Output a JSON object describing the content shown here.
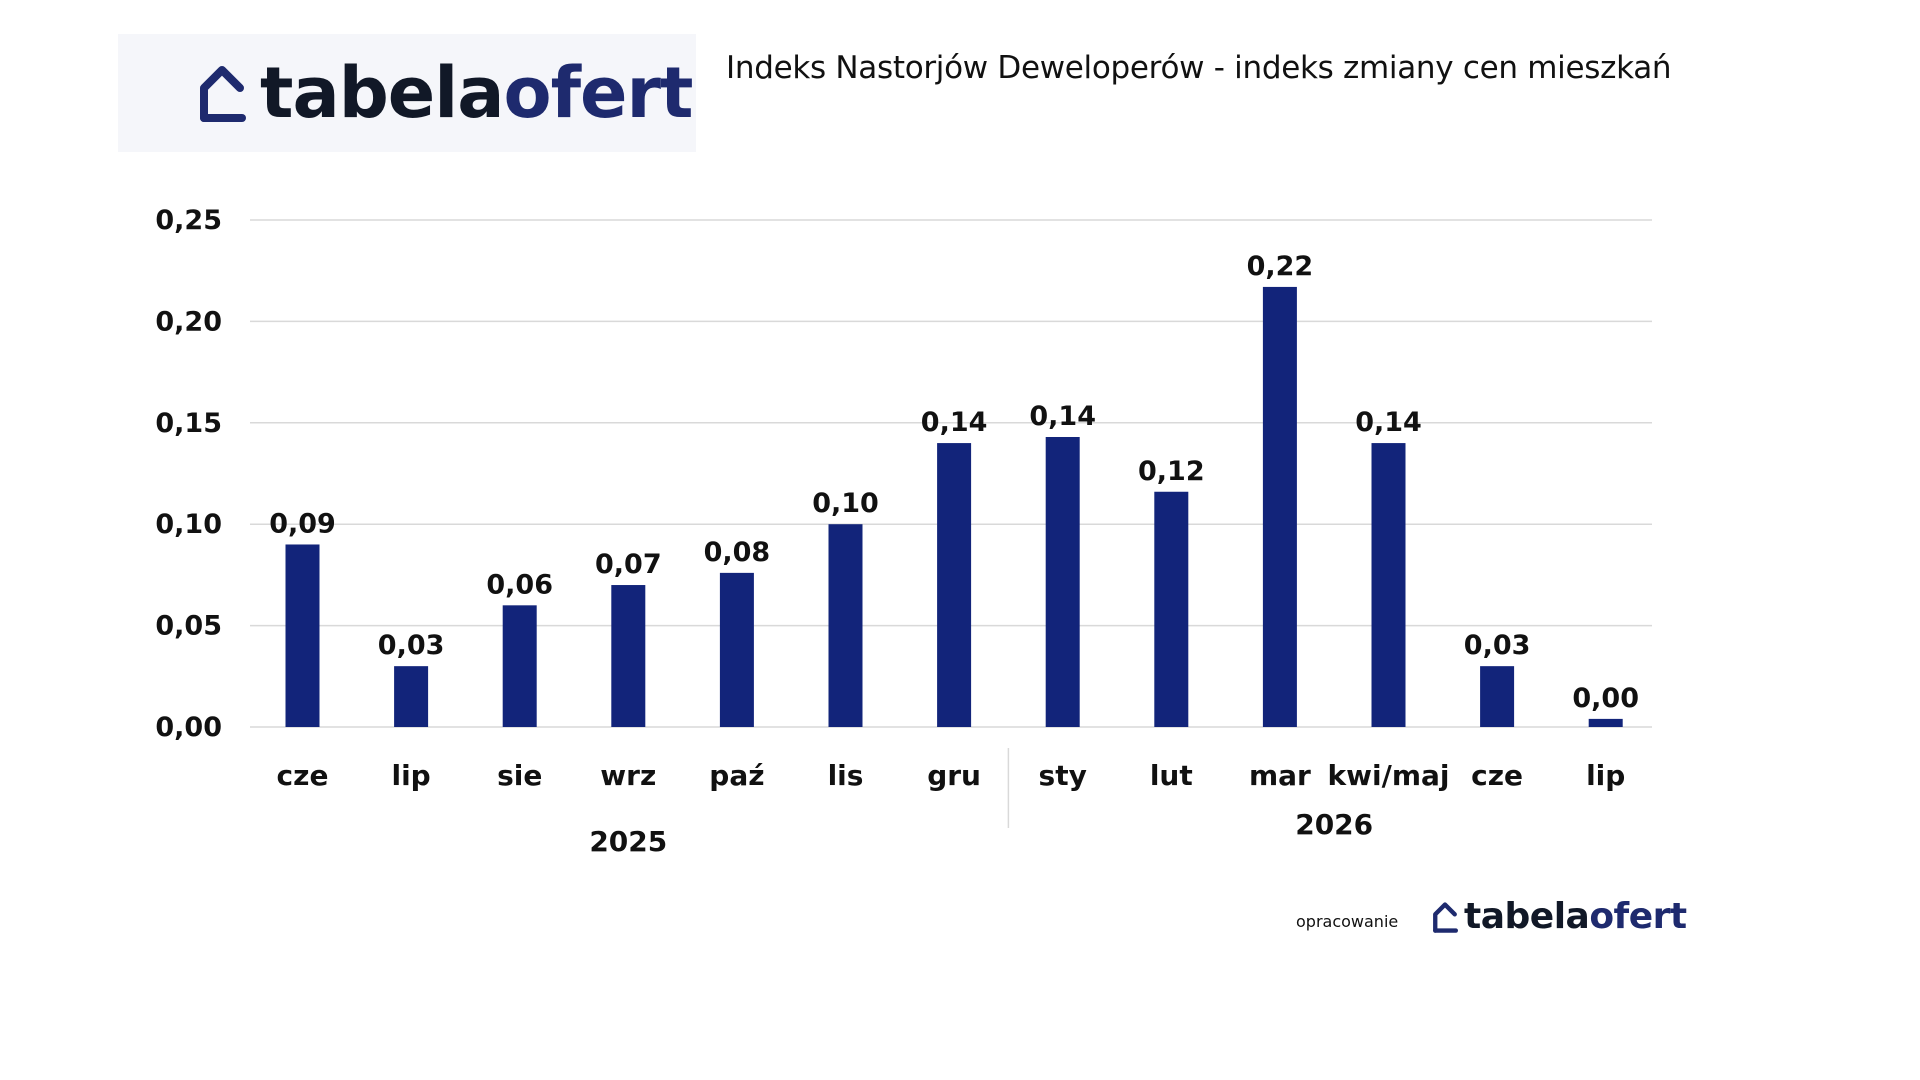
{
  "brand": {
    "name_part1": "tabela",
    "name_part2": "ofert",
    "icon": "house-outline-icon",
    "color_dark": "#111827",
    "color_accent": "#1e2a6e"
  },
  "footer": {
    "prefix": "opracowanie"
  },
  "chart_data": {
    "type": "bar",
    "title": "Indeks Nastorjów Deweloperów - indeks zmiany cen mieszkań",
    "categories": [
      "cze",
      "lip",
      "sie",
      "wrz",
      "paź",
      "lis",
      "gru",
      "sty",
      "lut",
      "mar",
      "kwi/maj",
      "cze",
      "lip"
    ],
    "year_groups": [
      {
        "label": "2025",
        "categories": [
          "cze",
          "lip",
          "sie",
          "wrz",
          "paź",
          "lis",
          "gru"
        ]
      },
      {
        "label": "2026",
        "categories": [
          "sty",
          "lut",
          "mar",
          "kwi/maj",
          "cze",
          "lip"
        ]
      }
    ],
    "values": [
      0.09,
      0.03,
      0.06,
      0.07,
      0.076,
      0.1,
      0.14,
      0.143,
      0.116,
      0.217,
      0.14,
      0.03,
      0.004
    ],
    "data_labels": [
      "0,09",
      "0,03",
      "0,06",
      "0,07",
      "0,08",
      "0,10",
      "0,14",
      "0,14",
      "0,12",
      "0,22",
      "0,14",
      "0,03",
      "0,00"
    ],
    "y_ticks": [
      0,
      0.05,
      0.1,
      0.15,
      0.2,
      0.25
    ],
    "y_tick_labels": [
      "0,00",
      "0,05",
      "0,10",
      "0,15",
      "0,20",
      "0,25"
    ],
    "ylim": [
      0,
      0.25
    ],
    "xlabel": "",
    "ylabel": "",
    "grid": true,
    "legend": "none",
    "bar_color": "#12247a",
    "grid_color": "#d9d9d9"
  }
}
